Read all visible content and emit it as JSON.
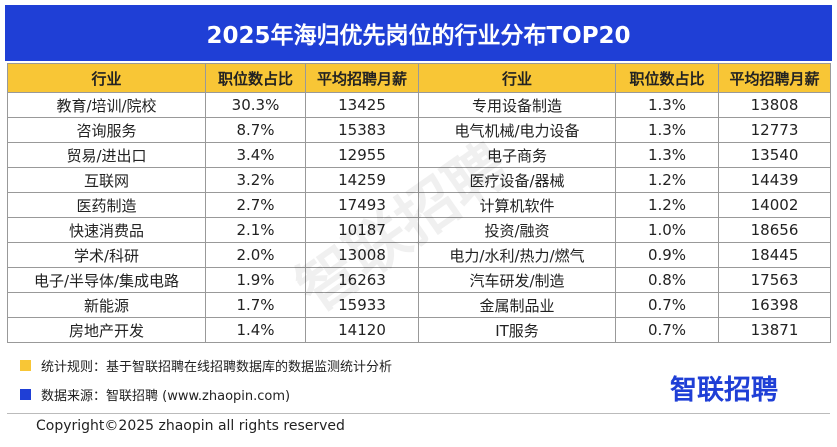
{
  "header": {
    "title": "2025年海归优先岗位的行业分布TOP20"
  },
  "table": {
    "columns": [
      "行业",
      "职位数占比",
      "平均招聘月薪",
      "行业",
      "职位数占比",
      "平均招聘月薪"
    ],
    "rows": [
      [
        "教育/培训/院校",
        "30.3%",
        "13425",
        "专用设备制造",
        "1.3%",
        "13808"
      ],
      [
        "咨询服务",
        "8.7%",
        "15383",
        "电气机械/电力设备",
        "1.3%",
        "12773"
      ],
      [
        "贸易/进出口",
        "3.4%",
        "12955",
        "电子商务",
        "1.3%",
        "13540"
      ],
      [
        "互联网",
        "3.2%",
        "14259",
        "医疗设备/器械",
        "1.2%",
        "14439"
      ],
      [
        "医药制造",
        "2.7%",
        "17493",
        "计算机软件",
        "1.2%",
        "14002"
      ],
      [
        "快速消费品",
        "2.1%",
        "10187",
        "投资/融资",
        "1.0%",
        "18656"
      ],
      [
        "学术/科研",
        "2.0%",
        "13008",
        "电力/水利/热力/燃气",
        "0.9%",
        "18445"
      ],
      [
        "电子/半导体/集成电路",
        "1.9%",
        "16263",
        "汽车研发/制造",
        "0.8%",
        "17563"
      ],
      [
        "新能源",
        "1.7%",
        "15933",
        "金属制品业",
        "0.7%",
        "16398"
      ],
      [
        "房地产开发",
        "1.4%",
        "14120",
        "IT服务",
        "0.7%",
        "13871"
      ]
    ]
  },
  "notes": [
    "统计规则：基于智联招聘在线招聘数据库的数据监测统计分析",
    "数据来源：智联招聘 (www.zhaopin.com)"
  ],
  "logo": "智联招聘",
  "watermark": "智联招聘",
  "copyright": "Copyright©2025 zhaopin all rights reserved"
}
